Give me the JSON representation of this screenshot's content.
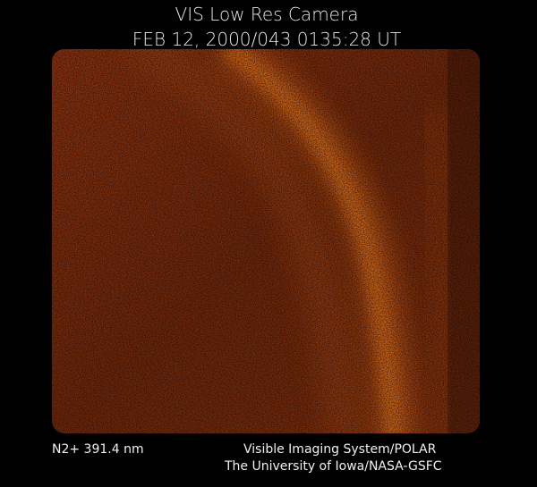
{
  "header": {
    "title": "VIS Low Res Camera",
    "timestamp": "FEB 12, 2000/043 0135:28 UT"
  },
  "footer": {
    "filter": "N2+ 391.4 nm",
    "instrument": "Visible Imaging System/POLAR",
    "credit": "The University of Iowa/NASA-GSFC"
  }
}
